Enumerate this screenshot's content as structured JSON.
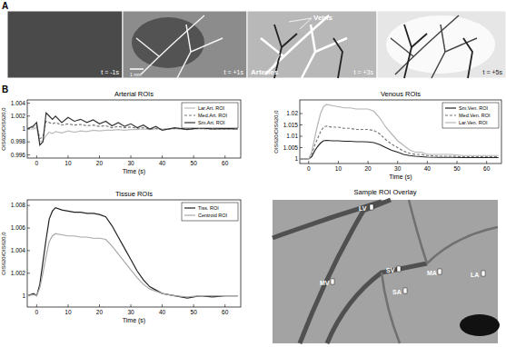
{
  "chart_data": [
    {
      "type": "line",
      "title": "Arterial ROIs",
      "x_label": "Time (s)",
      "y_label": "OIS620/OIS620,0",
      "x": [
        -3,
        -1,
        0,
        1,
        2,
        3,
        4,
        5,
        6,
        8,
        10,
        12,
        14,
        16,
        18,
        20,
        22,
        24,
        26,
        28,
        30,
        32,
        34,
        36,
        38,
        40,
        44,
        48,
        52,
        56,
        60,
        64
      ],
      "xlim": [
        -3,
        65
      ],
      "xticks": [
        0,
        10,
        20,
        30,
        40,
        50,
        60
      ],
      "ylim": [
        0.9955,
        1.0045
      ],
      "yticks": [
        0.996,
        0.998,
        1,
        1.002,
        1.004
      ],
      "legend": "upper right",
      "series": [
        {
          "name": "Lar.Art. ROI",
          "color": "#bdbdbd",
          "line_style": "solid",
          "values": [
            1.0,
            1.0,
            1.0002,
            0.998,
            0.9982,
            0.999,
            0.9995,
            0.9993,
            0.9996,
            0.9994,
            0.9997,
            0.9995,
            0.9997,
            0.9996,
            0.9998,
            0.9997,
            0.9998,
            0.9998,
            0.9999,
            0.9998,
            0.9999,
            0.9999,
            1.0,
            0.9999,
            1.0,
            1.0,
            1.0,
            1.0,
            1.0,
            1.0,
            1.0,
            1.0
          ]
        },
        {
          "name": "Med.Art. ROI",
          "color": "#777777",
          "line_style": "dashed",
          "values": [
            1.0,
            1.0003,
            1.0005,
            0.9985,
            0.9988,
            1.0012,
            1.001,
            1.0008,
            1.001,
            1.0006,
            1.0008,
            1.0006,
            1.0007,
            1.0005,
            1.0006,
            1.0004,
            1.0005,
            1.0002,
            1.0004,
            1.0002,
            1.0003,
            1.0001,
            1.0002,
            1.0,
            1.0001,
            0.9999,
            1.0001,
            1.0,
            1.0001,
            1.0,
            1.0,
            1.0
          ]
        },
        {
          "name": "Sm.Art. ROI",
          "color": "#333333",
          "line_style": "solid",
          "values": [
            1.0,
            1.0005,
            1.001,
            0.9975,
            0.998,
            1.0025,
            1.002,
            1.0015,
            1.002,
            1.001,
            1.0018,
            1.0012,
            1.0015,
            1.001,
            1.0014,
            1.0008,
            1.0012,
            1.0005,
            1.001,
            1.0004,
            1.0008,
            1.0002,
            1.0006,
            1.0,
            1.0004,
            0.9998,
            1.0002,
            0.9999,
            1.0002,
            1.0,
            1.0001,
            1.0
          ]
        }
      ]
    },
    {
      "type": "line",
      "title": "Venous ROIs",
      "x_label": "Time (s)",
      "y_label": "OIS620/OIS620,0",
      "x": [
        -3,
        -1,
        0,
        1,
        2,
        3,
        4,
        5,
        6,
        8,
        10,
        12,
        14,
        16,
        18,
        20,
        22,
        24,
        26,
        28,
        30,
        32,
        34,
        36,
        38,
        40,
        44,
        48,
        52,
        56,
        60,
        64
      ],
      "xlim": [
        -3,
        65
      ],
      "xticks": [
        0,
        10,
        20,
        30,
        40,
        50,
        60
      ],
      "ylim": [
        0.998,
        1.026
      ],
      "yticks": [
        1,
        1.005,
        1.01,
        1.015,
        1.02
      ],
      "legend": "upper right",
      "series": [
        {
          "name": "Sm.Ven. ROI",
          "color": "#222222",
          "line_style": "solid",
          "values": [
            1.0,
            1.0,
            1.0,
            1.001,
            1.0035,
            1.0055,
            1.007,
            1.008,
            1.0082,
            1.008,
            1.008,
            1.0078,
            1.0078,
            1.0076,
            1.0076,
            1.0075,
            1.0072,
            1.0063,
            1.005,
            1.0038,
            1.003,
            1.002,
            1.0015,
            1.0012,
            1.001,
            1.0008,
            1.0007,
            1.0007,
            1.0006,
            1.0006,
            1.0006,
            1.0006
          ]
        },
        {
          "name": "Med.Ven. ROI",
          "color": "#777777",
          "line_style": "dashed",
          "values": [
            1.0,
            1.0,
            1.0,
            1.002,
            1.006,
            1.009,
            1.012,
            1.014,
            1.0145,
            1.014,
            1.014,
            1.0135,
            1.0135,
            1.013,
            1.013,
            1.013,
            1.0125,
            1.011,
            1.0085,
            1.0065,
            1.005,
            1.0035,
            1.0025,
            1.002,
            1.002,
            1.0015,
            1.0012,
            1.0012,
            1.001,
            1.001,
            1.001,
            1.001
          ]
        },
        {
          "name": "Lar.Ven. ROI",
          "color": "#b5b5b5",
          "line_style": "solid",
          "values": [
            1.0,
            1.0,
            1.0,
            1.003,
            1.009,
            1.015,
            1.02,
            1.023,
            1.024,
            1.0235,
            1.023,
            1.0225,
            1.0225,
            1.022,
            1.022,
            1.022,
            1.021,
            1.018,
            1.014,
            1.011,
            1.008,
            1.006,
            1.004,
            1.003,
            1.003,
            1.002,
            1.002,
            1.002,
            1.0015,
            1.0015,
            1.0015,
            1.0015
          ]
        }
      ]
    },
    {
      "type": "line",
      "title": "Tissue ROIs",
      "x_label": "Time (s)",
      "y_label": "OIS620/OIS620,0",
      "x": [
        -3,
        -1,
        0,
        1,
        2,
        3,
        4,
        5,
        6,
        8,
        10,
        12,
        14,
        16,
        18,
        20,
        22,
        24,
        26,
        28,
        30,
        32,
        34,
        36,
        38,
        40,
        44,
        48,
        52,
        56,
        60,
        64
      ],
      "xlim": [
        -3,
        65
      ],
      "xticks": [
        0,
        10,
        20,
        30,
        40,
        50,
        60
      ],
      "ylim": [
        0.999,
        1.0085
      ],
      "yticks": [
        1,
        1.002,
        1.004,
        1.006,
        1.008
      ],
      "legend": "upper right",
      "series": [
        {
          "name": "Tiss. ROI",
          "color": "#222222",
          "line_style": "solid",
          "values": [
            1.0,
            1.0002,
            1.0,
            1.001,
            1.003,
            1.005,
            1.0068,
            1.0075,
            1.0078,
            1.0076,
            1.0075,
            1.0074,
            1.0074,
            1.0073,
            1.0073,
            1.0072,
            1.007,
            1.0062,
            1.0052,
            1.0042,
            1.0032,
            1.0022,
            1.0014,
            1.0008,
            1.0005,
            1.0002,
            1.0,
            0.9998,
            1.0,
            0.9999,
            1.0,
            1.0
          ]
        },
        {
          "name": "Centroid ROI",
          "color": "#a8a8a8",
          "line_style": "solid",
          "values": [
            1.0,
            1.0001,
            1.0,
            1.0007,
            1.002,
            1.0035,
            1.0048,
            1.0053,
            1.0055,
            1.0054,
            1.0053,
            1.0053,
            1.0052,
            1.0052,
            1.0051,
            1.0051,
            1.005,
            1.0044,
            1.0037,
            1.003,
            1.0023,
            1.0016,
            1.001,
            1.0006,
            1.0004,
            1.0002,
            1.0,
            0.9999,
            1.0,
            1.0,
            1.0,
            1.0
          ]
        }
      ]
    }
  ],
  "panel_a": {
    "label": "A",
    "frames": [
      "t = -1s",
      "t = +1s",
      "t = +3s",
      "t = +5s"
    ],
    "scale_bar": "1 mm",
    "annotations": [
      "Veins",
      "Arteries"
    ]
  },
  "panel_b": {
    "label": "B"
  },
  "overlay": {
    "title": "Sample ROI Overlay",
    "labels": [
      "LV",
      "SV",
      "MA",
      "LA",
      "MV",
      "SA"
    ]
  }
}
